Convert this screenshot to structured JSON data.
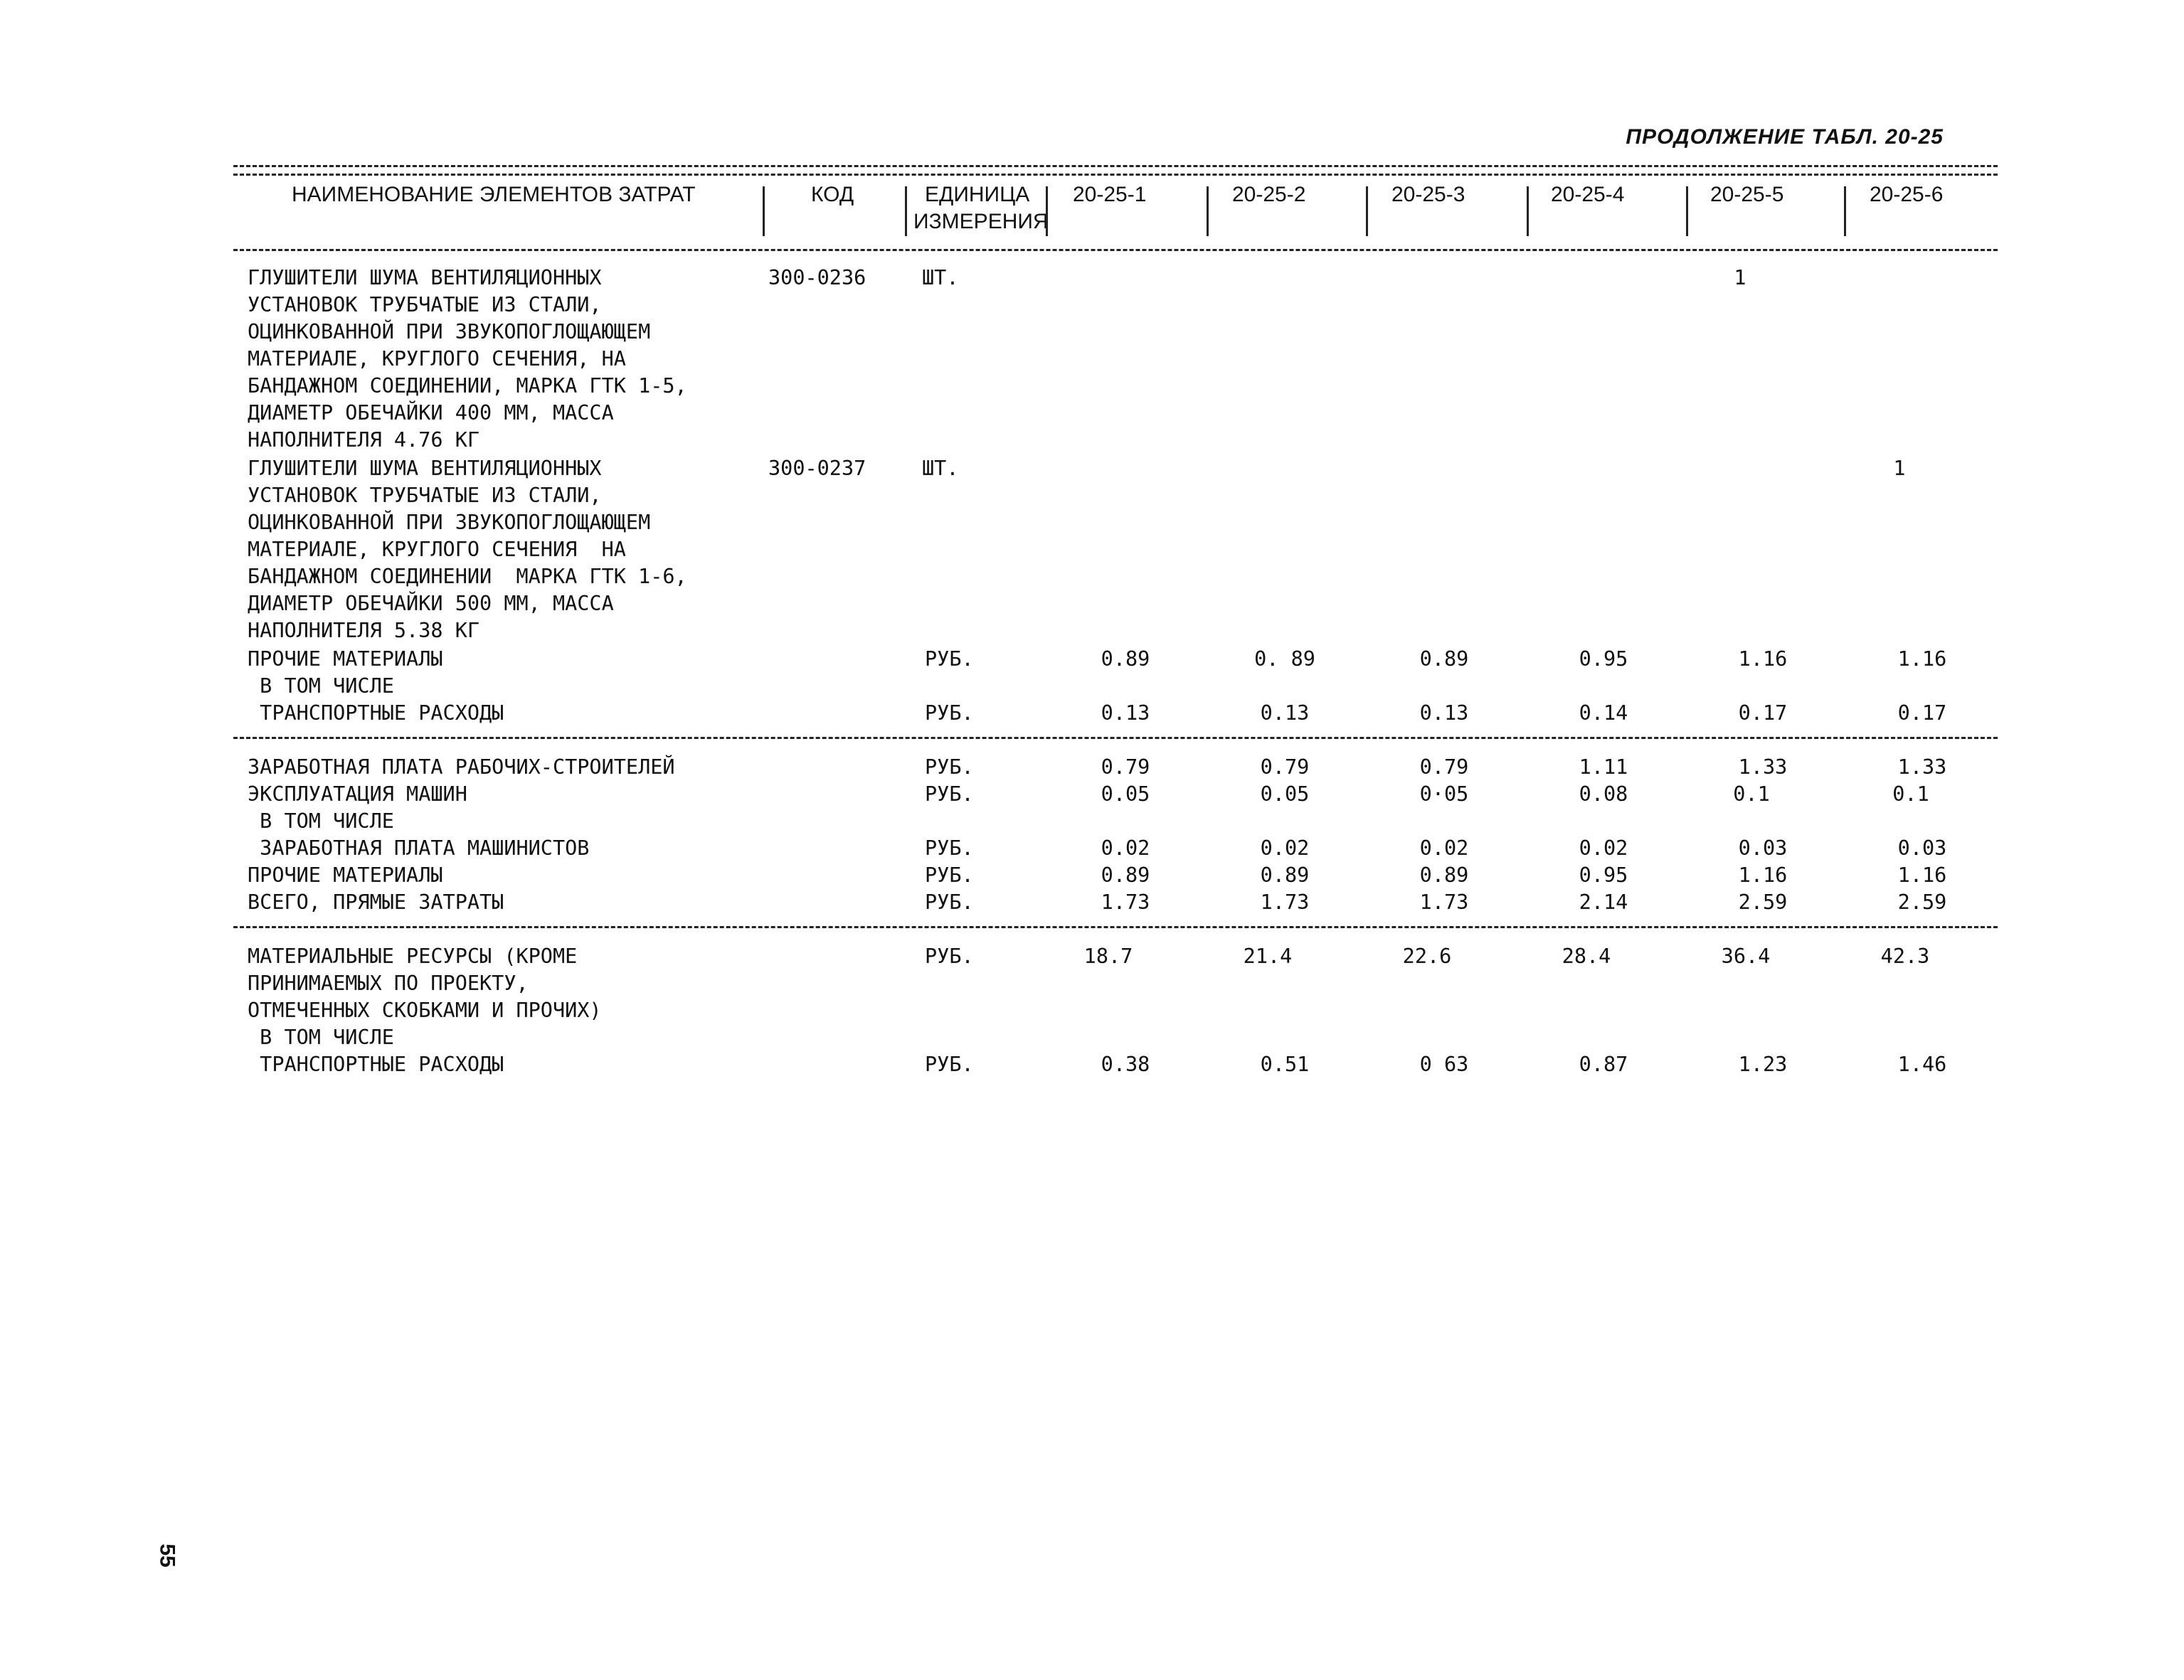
{
  "sheet_title": "ПРОДОЛЖЕНИЕ ТАБЛ. 20-25",
  "header": {
    "name": "НАИМЕНОВАНИЕ ЭЛЕМЕНТОВ ЗАТРАТ",
    "code": "КОД",
    "unit_line1": "ЕДИНИЦА",
    "unit_line2": "ИЗМЕРЕНИЯ",
    "cols": [
      "20-25-1",
      "20-25-2",
      "20-25-3",
      "20-25-4",
      "20-25-5",
      "20-25-6"
    ]
  },
  "rows": [
    {
      "name": "ГЛУШИТЕЛИ ШУМА ВЕНТИЛЯЦИОННЫХ\nУСТАНОВОК ТРУБЧАТЫЕ ИЗ СТАЛИ,\nОЦИНКОВАННОЙ ПРИ ЗВУКОПОГЛОЩАЮЩЕМ\nМАТЕРИАЛЕ, КРУГЛОГО СЕЧЕНИЯ, НА\nБАНДАЖНОМ СОЕДИНЕНИИ, МАРКА ГТК 1-5,\nДИАМЕТР ОБЕЧАЙКИ 400 ММ, МАССА\nНАПОЛНИТЕЛЯ 4.76 КГ",
      "code": "300-0236",
      "unit": "ШТ.",
      "values": [
        "",
        "",
        "",
        "",
        "1",
        ""
      ]
    },
    {
      "name": "ГЛУШИТЕЛИ ШУМА ВЕНТИЛЯЦИОННЫХ\nУСТАНОВОК ТРУБЧАТЫЕ ИЗ СТАЛИ,\nОЦИНКОВАННОЙ ПРИ ЗВУКОПОГЛОЩАЮЩЕМ\nМАТЕРИАЛЕ, КРУГЛОГО СЕЧЕНИЯ  НА\nБАНДАЖНОМ СОЕДИНЕНИИ  МАРКА ГТК 1-6,\nДИАМЕТР ОБЕЧАЙКИ 500 ММ, МАССА\nНАПОЛНИТЕЛЯ 5.38 КГ",
      "code": "300-0237",
      "unit": "ШТ.",
      "values": [
        "",
        "",
        "",
        "",
        "",
        "1"
      ]
    },
    {
      "name": "ПРОЧИЕ МАТЕРИАЛЫ",
      "code": "",
      "unit": "РУБ.",
      "values": [
        "0.89",
        "0. 89",
        "0.89",
        "0.95",
        "1.16",
        "1.16"
      ]
    },
    {
      "name": " В ТОМ ЧИСЛЕ",
      "code": "",
      "unit": "",
      "values": [
        "",
        "",
        "",
        "",
        "",
        ""
      ]
    },
    {
      "name": " ТРАНСПОРТНЫЕ РАСХОДЫ",
      "code": "",
      "unit": "РУБ.",
      "values": [
        "0.13",
        "0.13",
        "0.13",
        "0.14",
        "0.17",
        "0.17"
      ]
    },
    {
      "name": "ЗАРАБОТНАЯ ПЛАТА РАБОЧИХ-СТРОИТЕЛЕЙ",
      "code": "",
      "unit": "РУБ.",
      "values": [
        "0.79",
        "0.79",
        "0.79",
        "1.11",
        "1.33",
        "1.33"
      ]
    },
    {
      "name": "ЭКСПЛУАТАЦИЯ МАШИН",
      "code": "",
      "unit": "РУБ.",
      "values": [
        "0.05",
        "0.05",
        "0·05",
        "0.08",
        "0.1",
        "0.1"
      ]
    },
    {
      "name": " В ТОМ ЧИСЛЕ",
      "code": "",
      "unit": "",
      "values": [
        "",
        "",
        "",
        "",
        "",
        ""
      ]
    },
    {
      "name": " ЗАРАБОТНАЯ ПЛАТА МАШИНИСТОВ",
      "code": "",
      "unit": "РУБ.",
      "values": [
        "0.02",
        "0.02",
        "0.02",
        "0.02",
        "0.03",
        "0.03"
      ]
    },
    {
      "name": "ПРОЧИЕ МАТЕРИАЛЫ",
      "code": "",
      "unit": "РУБ.",
      "values": [
        "0.89",
        "0.89",
        "0.89",
        "0.95",
        "1.16",
        "1.16"
      ]
    },
    {
      "name": "ВСЕГО, ПРЯМЫЕ ЗАТРАТЫ",
      "code": "",
      "unit": "РУБ.",
      "values": [
        "1.73",
        "1.73",
        "1.73",
        "2.14",
        "2.59",
        "2.59"
      ]
    },
    {
      "name": "МАТЕРИАЛЬНЫЕ РЕСУРСЫ (КРОМЕ\nПРИНИМАЕМЫХ ПО ПРОЕКТУ,\nОТМЕЧЕННЫХ СКОБКАМИ И ПРОЧИХ)",
      "code": "",
      "unit": "РУБ.",
      "values": [
        "18.7",
        "21.4",
        "22.6",
        "28.4",
        "36.4",
        "42.3"
      ]
    },
    {
      "name": " В ТОМ ЧИСЛЕ",
      "code": "",
      "unit": "",
      "values": [
        "",
        "",
        "",
        "",
        "",
        ""
      ]
    },
    {
      "name": " ТРАНСПОРТНЫЕ РАСХОДЫ",
      "code": "",
      "unit": "РУБ.",
      "values": [
        "0.38",
        "0.51",
        "0 63",
        "0.87",
        "1.23",
        "1.46"
      ]
    }
  ],
  "page_number": "55"
}
